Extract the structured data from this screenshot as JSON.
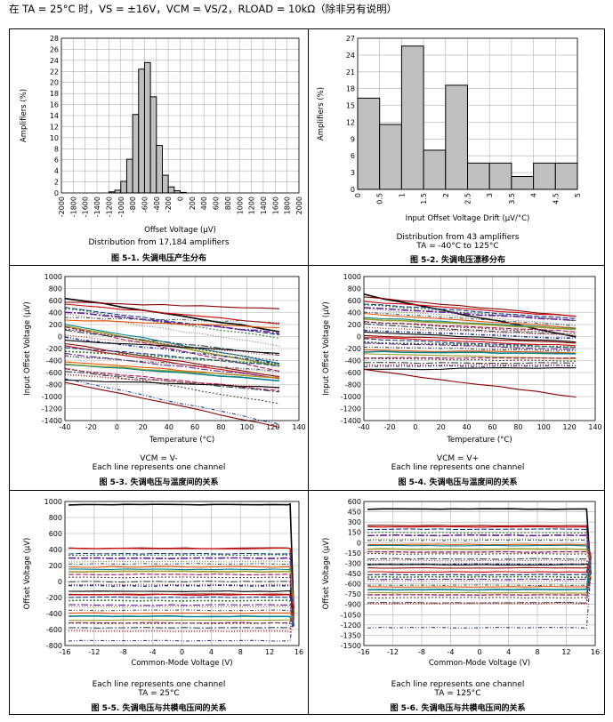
{
  "header": {
    "text": "在 TA = 25°C 时，VS = ±16V，VCM = VS/2，RLOAD = 10kΩ（除非另有说明）"
  },
  "colors": {
    "bar_fill": "#c0c0c0",
    "grid": "#b0b0b0"
  },
  "figures": [
    {
      "caption": "Distribution from 17,184 amplifiers",
      "caption2": "",
      "title": "图 5-1. 失调电压产生分布"
    },
    {
      "caption": "Distribution from 43 amplifiers",
      "caption2": "TA = -40°C to 125°C",
      "title": "图 5-2. 失调电压漂移分布"
    },
    {
      "caption": "VCM = V-",
      "caption2": "Each line represents one channel",
      "title": "图 5-3. 失调电压与温度间的关系"
    },
    {
      "caption": "VCM = V+",
      "caption2": "Each line represents one channel",
      "title": "图 5-4. 失调电压与温度间的关系"
    },
    {
      "caption": "Each line represents one channel",
      "caption2": "TA = 25°C",
      "title": "图 5-5. 失调电压与共模电压间的关系"
    },
    {
      "caption": "Each line represents one channel",
      "caption2": "TA = 125°C",
      "title": "图 5-6. 失调电压与共模电压间的关系"
    }
  ],
  "chart_data": [
    {
      "type": "bar",
      "xlabel": "Offset Voltage (μV)",
      "ylabel": "Amplifiers (%)",
      "ylim": [
        0,
        28
      ],
      "yticks": [
        0,
        2,
        4,
        6,
        8,
        10,
        12,
        14,
        16,
        18,
        20,
        22,
        24,
        26,
        28
      ],
      "xticks": [
        "-2000",
        "-1800",
        "-1600",
        "-1400",
        "-1200",
        "-1000",
        "-800",
        "-600",
        "-400",
        "-200",
        "0",
        "200",
        "400",
        "600",
        "800",
        "1000",
        "1200",
        "1400",
        "1600",
        "1800",
        "2000"
      ],
      "bins": [
        -1800,
        -1700,
        -1600,
        -1500,
        -1400,
        -1300,
        -1200,
        -1100,
        -1000,
        -900,
        -800,
        -700,
        -600,
        -500,
        -400,
        -300,
        -200,
        -100,
        0,
        100,
        200,
        300,
        400,
        500,
        600
      ],
      "values": [
        0,
        0,
        0,
        0,
        0,
        0,
        0.2,
        0.5,
        2.1,
        6.1,
        14.2,
        22.4,
        23.6,
        17.4,
        8.6,
        3.2,
        1.1,
        0.4,
        0.1,
        0,
        0,
        0,
        0,
        0,
        0
      ]
    },
    {
      "type": "bar",
      "xlabel": "Input Offset Voltage Drift (μV/°C)",
      "ylabel": "Amplifiers (%)",
      "ylim": [
        0,
        27
      ],
      "yticks": [
        0,
        3,
        6,
        9,
        12,
        15,
        18,
        21,
        24,
        27
      ],
      "xticks": [
        "0",
        "0.5",
        "1",
        "1.5",
        "2",
        "2.5",
        "3",
        "3.5",
        "4",
        "4.5",
        "5"
      ],
      "bins": [
        0,
        0.5,
        1,
        1.5,
        2,
        2.5,
        3,
        3.5,
        4,
        4.5
      ],
      "values": [
        16.3,
        11.6,
        25.6,
        7,
        18.6,
        4.7,
        4.7,
        2.3,
        4.7,
        4.7
      ]
    },
    {
      "type": "line",
      "xlabel": "Temperature (°C)",
      "ylabel": "Input Offset Voltage (μV)",
      "xlim": [
        -40,
        140
      ],
      "ylim": [
        -1400,
        1000
      ],
      "xticks": [
        -40,
        -20,
        0,
        20,
        40,
        60,
        80,
        100,
        120,
        140
      ],
      "yticks": [
        -1400,
        -1200,
        -1000,
        -800,
        -600,
        -400,
        -200,
        0,
        200,
        400,
        600,
        800,
        1000
      ],
      "series_count": 34
    },
    {
      "type": "line",
      "xlabel": "Temperature (°C)",
      "ylabel": "Input Offset Voltage (μV)",
      "xlim": [
        -40,
        140
      ],
      "ylim": [
        -1400,
        1000
      ],
      "xticks": [
        -40,
        -20,
        0,
        20,
        40,
        60,
        80,
        100,
        120,
        140
      ],
      "yticks": [
        -1400,
        -1200,
        -1000,
        -800,
        -600,
        -400,
        -200,
        0,
        200,
        400,
        600,
        800,
        1000
      ],
      "series_count": 34
    },
    {
      "type": "line",
      "xlabel": "Common-Mode Voltage (V)",
      "ylabel": "Offset Voltage (μV)",
      "xlim": [
        -16,
        16
      ],
      "ylim": [
        -800,
        1000
      ],
      "xticks": [
        -16,
        -12,
        -8,
        -4,
        0,
        4,
        8,
        12,
        16
      ],
      "yticks": [
        -800,
        -600,
        -400,
        -200,
        0,
        200,
        400,
        600,
        800,
        1000
      ],
      "series_count": 32
    },
    {
      "type": "line",
      "xlabel": "Common-Mode Voltage (V)",
      "ylabel": "Offset Voltage (μV)",
      "xlim": [
        -16,
        16
      ],
      "ylim": [
        -1500,
        600
      ],
      "xticks": [
        -16,
        -12,
        -8,
        -4,
        0,
        4,
        8,
        12,
        16
      ],
      "yticks": [
        -1500,
        -1350,
        -1200,
        -1050,
        -900,
        -750,
        -600,
        -450,
        -300,
        -150,
        0,
        150,
        300,
        450,
        600
      ],
      "series_count": 32
    }
  ]
}
